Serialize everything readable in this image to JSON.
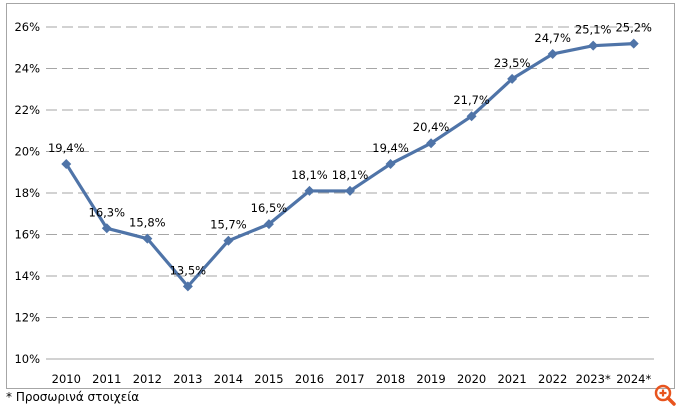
{
  "chart_data": {
    "type": "line",
    "categories": [
      "2010",
      "2011",
      "2012",
      "2013",
      "2014",
      "2015",
      "2016",
      "2017",
      "2018",
      "2019",
      "2020",
      "2021",
      "2022",
      "2023*",
      "2024*"
    ],
    "values": [
      19.4,
      16.3,
      15.8,
      13.5,
      15.7,
      16.5,
      18.1,
      18.1,
      19.4,
      20.4,
      21.7,
      23.5,
      24.7,
      25.1,
      25.2
    ],
    "data_labels": [
      "19,4%",
      "16,3%",
      "15,8%",
      "13,5%",
      "15,7%",
      "16,5%",
      "18,1%",
      "18,1%",
      "19,4%",
      "20,4%",
      "21,7%",
      "23,5%",
      "24,7%",
      "25,1%",
      "25,2%"
    ],
    "yticks": [
      "10%",
      "12%",
      "14%",
      "16%",
      "18%",
      "20%",
      "22%",
      "24%",
      "26%"
    ],
    "ylim": [
      10,
      26
    ],
    "ystep": 2,
    "grid": "horizontal dashed",
    "legend": "none",
    "line_color": "#4f74a8",
    "marker": "diamond"
  },
  "footnote": "* Προσωρινά στοιχεία",
  "zoom_icon": "zoom-in-icon",
  "zoom_color": "#e8541e"
}
